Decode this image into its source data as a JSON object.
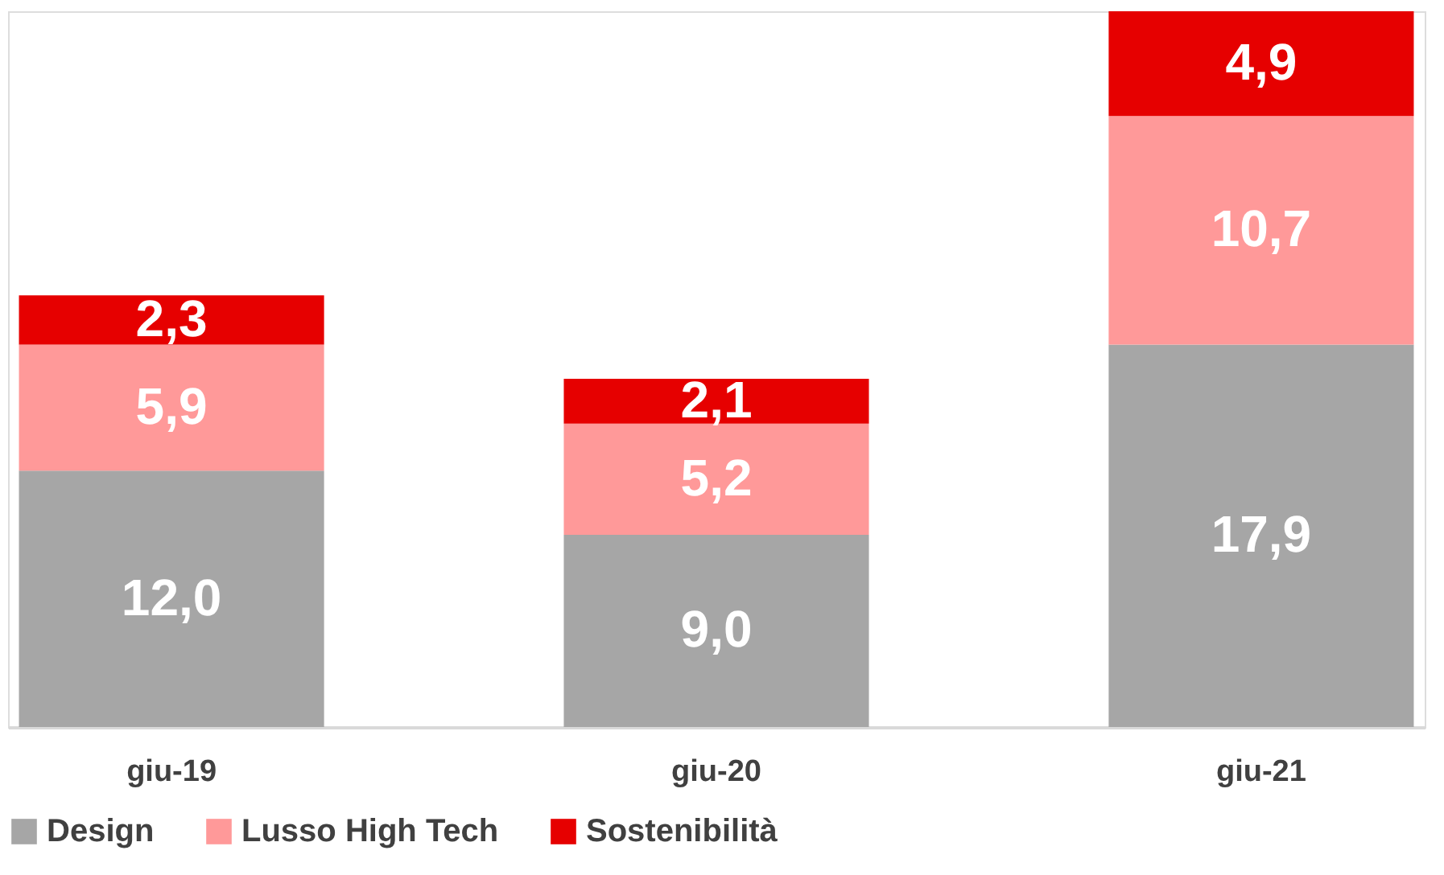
{
  "chart_data": {
    "type": "bar",
    "stacked": true,
    "categories": [
      "giu-19",
      "giu-20",
      "giu-21"
    ],
    "series": [
      {
        "name": "Design",
        "color": "#a6a6a6",
        "values": [
          12.0,
          9.0,
          17.9
        ],
        "value_labels": [
          "12,0",
          "9,0",
          "17,9"
        ]
      },
      {
        "name": "Lusso High Tech",
        "color": "#ff9999",
        "values": [
          5.9,
          5.2,
          10.7
        ],
        "value_labels": [
          "5,9",
          "5,2",
          "10,7"
        ]
      },
      {
        "name": "Sostenibilità",
        "color": "#e60000",
        "values": [
          2.3,
          2.1,
          4.9
        ],
        "value_labels": [
          "2,3",
          "2,1",
          "4,9"
        ]
      }
    ],
    "legend": "bottom",
    "grid": false
  }
}
